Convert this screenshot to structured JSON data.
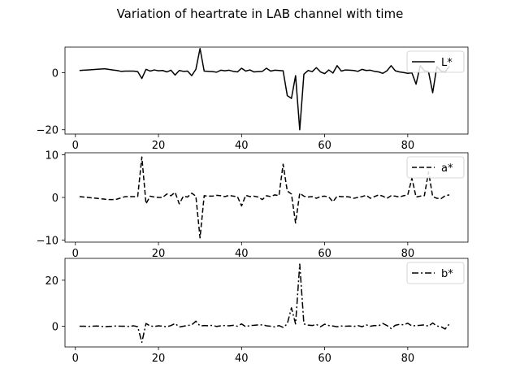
{
  "chart_data": {
    "title": "Variation of heartrate in LAB channel with time",
    "x": [
      1,
      2,
      3,
      4,
      5,
      6,
      7,
      8,
      9,
      10,
      11,
      12,
      13,
      14,
      15,
      16,
      17,
      18,
      19,
      20,
      21,
      22,
      23,
      24,
      25,
      26,
      27,
      28,
      29,
      30,
      31,
      32,
      33,
      34,
      35,
      36,
      37,
      38,
      39,
      40,
      41,
      42,
      43,
      44,
      45,
      46,
      47,
      48,
      49,
      50,
      51,
      52,
      53,
      54,
      55,
      56,
      57,
      58,
      59,
      60,
      61,
      62,
      63,
      64,
      65,
      66,
      67,
      68,
      69,
      70,
      71,
      72,
      73,
      74,
      75,
      76,
      77,
      78,
      79,
      80,
      81,
      82,
      83,
      84,
      85,
      86,
      87,
      88,
      89,
      90
    ],
    "panels": [
      {
        "type": "line",
        "series": [
          {
            "name": "L*",
            "style": "solid",
            "color": "#000000",
            "values": [
              0.8,
              0.9,
              1.0,
              1.1,
              1.2,
              1.3,
              1.4,
              1.2,
              1.0,
              0.8,
              0.5,
              0.6,
              0.6,
              0.6,
              0.4,
              -2.0,
              1.2,
              0.6,
              1.0,
              0.7,
              0.8,
              0.3,
              0.9,
              -0.8,
              0.8,
              0.5,
              0.6,
              -1.0,
              1.2,
              8.5,
              0.6,
              0.5,
              0.4,
              0.2,
              0.9,
              0.7,
              0.9,
              0.5,
              0.3,
              1.6,
              0.6,
              1.0,
              0.3,
              0.4,
              0.5,
              1.6,
              0.6,
              0.9,
              0.8,
              0.7,
              -8.0,
              -9.0,
              -1.0,
              -20.0,
              -0.5,
              0.8,
              0.4,
              1.8,
              0.3,
              -0.3,
              1.0,
              -0.1,
              2.5,
              0.6,
              1.0,
              0.9,
              0.8,
              0.5,
              1.2,
              0.8,
              0.9,
              0.5,
              0.3,
              -0.2,
              0.7,
              2.5,
              0.7,
              0.3,
              0.1,
              -0.2,
              0.0,
              -4.0,
              2.5,
              0.7,
              0.4,
              -7.0,
              2.2,
              0.6,
              0.3,
              2.3
            ]
          }
        ],
        "ylim": [
          -21.5,
          9.0
        ],
        "yticks": [
          -20,
          0
        ],
        "legend": "upper right"
      },
      {
        "type": "line",
        "series": [
          {
            "name": "a*",
            "style": "dashed",
            "color": "#000000",
            "values": [
              0.2,
              0.1,
              0.0,
              -0.1,
              -0.2,
              -0.3,
              -0.4,
              -0.5,
              -0.5,
              -0.4,
              -0.1,
              0.2,
              0.2,
              0.2,
              0.2,
              9.5,
              -1.5,
              0.3,
              0.1,
              0.0,
              0.0,
              0.8,
              0.4,
              1.2,
              -1.5,
              0.3,
              0.1,
              1.0,
              0.3,
              -9.5,
              0.4,
              0.3,
              0.3,
              0.5,
              0.4,
              0.2,
              0.5,
              0.3,
              0.2,
              -2.0,
              0.5,
              0.2,
              0.3,
              0.1,
              -0.5,
              0.4,
              0.2,
              0.6,
              0.4,
              7.8,
              1.5,
              0.8,
              -6.0,
              1.0,
              0.3,
              0.1,
              0.2,
              -0.2,
              0.2,
              0.3,
              0.1,
              -1.0,
              0.3,
              0.2,
              0.2,
              0.1,
              -0.2,
              0.0,
              0.2,
              0.5,
              -0.2,
              0.2,
              0.6,
              0.3,
              -0.2,
              0.4,
              0.3,
              0.1,
              0.4,
              0.6,
              4.5,
              0.1,
              0.3,
              0.4,
              6.0,
              0.2,
              -0.2,
              -0.3,
              0.4,
              0.6
            ]
          }
        ],
        "ylim": [
          -10.5,
          10.5
        ],
        "yticks": [
          -10,
          0,
          10
        ],
        "legend": "upper right"
      },
      {
        "type": "line",
        "series": [
          {
            "name": "b*",
            "style": "dashdot",
            "color": "#000000",
            "values": [
              0.0,
              0.0,
              -0.1,
              0.0,
              0.1,
              0.0,
              -0.2,
              -0.1,
              0.0,
              0.1,
              0.0,
              0.0,
              -0.1,
              0.2,
              -0.2,
              -7.0,
              1.2,
              0.1,
              -0.1,
              0.2,
              0.0,
              -0.2,
              0.3,
              1.2,
              -0.3,
              0.0,
              0.3,
              0.6,
              2.2,
              0.1,
              0.3,
              0.2,
              0.4,
              -0.1,
              0.2,
              0.3,
              0.2,
              0.4,
              0.0,
              1.0,
              -0.2,
              0.3,
              0.4,
              0.6,
              0.6,
              0.2,
              0.0,
              -0.3,
              0.3,
              -0.5,
              1.0,
              8.0,
              1.0,
              27.0,
              1.0,
              0.5,
              0.3,
              0.8,
              -0.2,
              0.9,
              0.3,
              0.1,
              -0.2,
              0.1,
              0.0,
              0.1,
              -0.1,
              0.3,
              -0.2,
              0.6,
              0.0,
              0.3,
              0.2,
              1.2,
              0.3,
              -1.0,
              0.4,
              0.8,
              0.6,
              1.3,
              0.1,
              0.3,
              0.4,
              0.6,
              0.0,
              1.4,
              0.1,
              -0.2,
              -1.2,
              1.0
            ]
          }
        ],
        "ylim": [
          -9.0,
          29.5
        ],
        "yticks": [
          0,
          20
        ],
        "legend": "upper right"
      }
    ],
    "xlim": [
      -2.5,
      94.5
    ],
    "xticks": [
      0,
      20,
      40,
      60,
      80
    ],
    "xlabel": "",
    "ylabel": "",
    "grid": false
  }
}
